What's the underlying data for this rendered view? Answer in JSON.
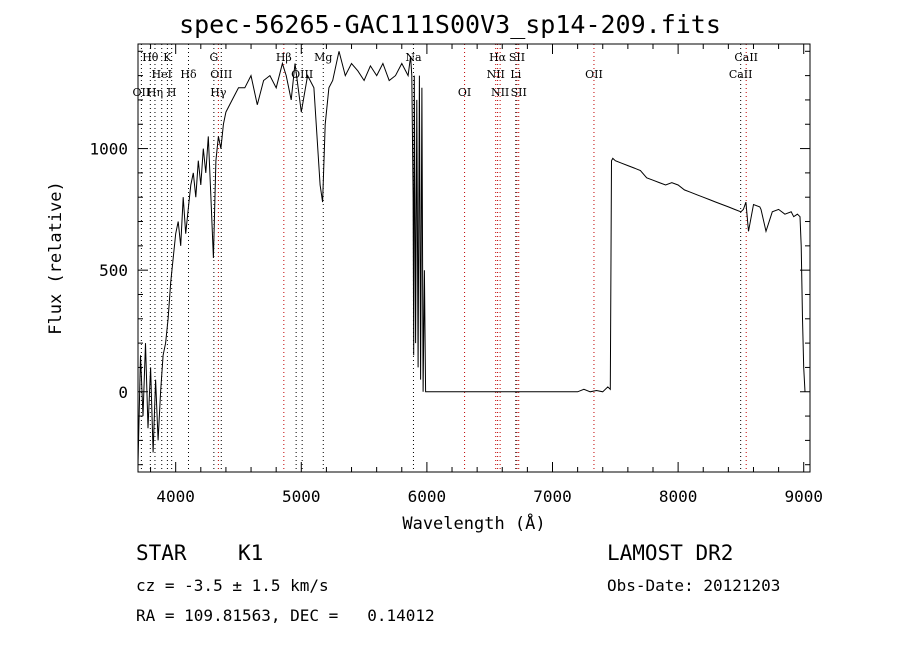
{
  "chart_data": {
    "type": "line",
    "title": "spec-56265-GAC111S00V3_sp14-209.fits",
    "xlabel": "Wavelength (Å)",
    "ylabel": "Flux (relative)",
    "xlim": [
      3700,
      9050
    ],
    "ylim": [
      -330,
      1430
    ],
    "x_ticks": [
      4000,
      5000,
      6000,
      7000,
      8000,
      9000
    ],
    "y_ticks": [
      0,
      500,
      1000
    ],
    "grid": false,
    "series": [
      {
        "x": [
          3700,
          3720,
          3740,
          3760,
          3780,
          3800,
          3820,
          3840,
          3860,
          3880,
          3900,
          3920,
          3940,
          3960,
          3980,
          4000,
          4020,
          4040,
          4060,
          4080,
          4100,
          4120,
          4140,
          4160,
          4180,
          4200,
          4220,
          4240,
          4260,
          4280,
          4300,
          4320,
          4340,
          4360,
          4380,
          4400,
          4450,
          4500,
          4550,
          4600,
          4650,
          4700,
          4750,
          4800,
          4850,
          4880,
          4920,
          4950,
          5000,
          5050,
          5100,
          5150,
          5170,
          5190,
          5220,
          5250,
          5300,
          5350,
          5400,
          5450,
          5500,
          5550,
          5600,
          5650,
          5700,
          5750,
          5800,
          5850,
          5870,
          5880,
          5890,
          5895,
          5900,
          5910,
          5920,
          5930,
          5940,
          5950,
          5960,
          5970,
          5980,
          5990,
          6000,
          6100,
          6200,
          6300,
          6400,
          6500,
          6600,
          6700,
          6800,
          6900,
          7000,
          7100,
          7200,
          7250,
          7300,
          7350,
          7400,
          7440,
          7460,
          7470,
          7480,
          7500,
          7550,
          7600,
          7650,
          7700,
          7750,
          7800,
          7850,
          7900,
          7950,
          8000,
          8050,
          8100,
          8150,
          8200,
          8250,
          8300,
          8350,
          8400,
          8450,
          8500,
          8520,
          8540,
          8560,
          8600,
          8650,
          8660,
          8700,
          8750,
          8800,
          8850,
          8900,
          8920,
          8950,
          8970,
          8980,
          8990,
          9000,
          9010
        ],
        "y": [
          -300,
          150,
          -100,
          200,
          -150,
          100,
          -250,
          50,
          -200,
          0,
          150,
          200,
          300,
          450,
          550,
          650,
          700,
          600,
          800,
          650,
          750,
          850,
          900,
          800,
          950,
          850,
          1000,
          900,
          1050,
          800,
          550,
          950,
          1050,
          1000,
          1100,
          1150,
          1200,
          1250,
          1250,
          1300,
          1180,
          1280,
          1300,
          1250,
          1350,
          1300,
          1200,
          1350,
          1150,
          1300,
          1250,
          850,
          780,
          1100,
          1250,
          1280,
          1400,
          1300,
          1350,
          1320,
          1280,
          1340,
          1300,
          1350,
          1280,
          1300,
          1350,
          1300,
          1380,
          1300,
          800,
          150,
          1300,
          200,
          1200,
          100,
          1300,
          50,
          1250,
          0,
          500,
          0,
          0,
          0,
          0,
          0,
          0,
          0,
          0,
          0,
          0,
          0,
          0,
          0,
          0,
          10,
          0,
          5,
          0,
          20,
          10,
          950,
          960,
          950,
          940,
          930,
          920,
          910,
          880,
          870,
          860,
          850,
          860,
          850,
          830,
          820,
          810,
          800,
          790,
          780,
          770,
          760,
          750,
          740,
          750,
          780,
          660,
          770,
          760,
          750,
          660,
          740,
          750,
          730,
          740,
          720,
          730,
          720,
          600,
          300,
          100,
          0
        ]
      }
    ],
    "line_labels": [
      {
        "text": "Hθ",
        "wl": 3798,
        "row": 1
      },
      {
        "text": "K",
        "wl": 3934,
        "row": 1
      },
      {
        "text": "G",
        "wl": 4304,
        "row": 1
      },
      {
        "text": "Hβ",
        "wl": 4861,
        "row": 1
      },
      {
        "text": "Mg",
        "wl": 5175,
        "row": 1
      },
      {
        "text": "Na",
        "wl": 5893,
        "row": 1
      },
      {
        "text": "Hα",
        "wl": 6563,
        "row": 1
      },
      {
        "text": "SII",
        "wl": 6717,
        "row": 1
      },
      {
        "text": "CaII",
        "wl": 8542,
        "row": 1
      },
      {
        "text": "HeI",
        "wl": 3889,
        "row": 2
      },
      {
        "text": "Hδ",
        "wl": 4102,
        "row": 2
      },
      {
        "text": "OIII",
        "wl": 4363,
        "row": 2
      },
      {
        "text": "OIII",
        "wl": 5007,
        "row": 2
      },
      {
        "text": "NII",
        "wl": 6548,
        "row": 2
      },
      {
        "text": "Li",
        "wl": 6708,
        "row": 2
      },
      {
        "text": "OII",
        "wl": 7330,
        "row": 2
      },
      {
        "text": "CaII",
        "wl": 8498,
        "row": 2
      },
      {
        "text": "OII",
        "wl": 3727,
        "row": 3
      },
      {
        "text": "Hη",
        "wl": 3835,
        "row": 3
      },
      {
        "text": "H",
        "wl": 3968,
        "row": 3
      },
      {
        "text": "Hγ",
        "wl": 4340,
        "row": 3
      },
      {
        "text": "OI",
        "wl": 6300,
        "row": 3
      },
      {
        "text": "NII",
        "wl": 6583,
        "row": 3
      },
      {
        "text": "SII",
        "wl": 6731,
        "row": 3
      }
    ],
    "marker_lines": [
      {
        "wl": 3727,
        "color": "#000000"
      },
      {
        "wl": 3798,
        "color": "#000000"
      },
      {
        "wl": 3835,
        "color": "#000000"
      },
      {
        "wl": 3889,
        "color": "#000000"
      },
      {
        "wl": 3934,
        "color": "#000000"
      },
      {
        "wl": 3968,
        "color": "#000000"
      },
      {
        "wl": 4102,
        "color": "#000000"
      },
      {
        "wl": 4304,
        "color": "#000000"
      },
      {
        "wl": 4340,
        "color": "#c00000"
      },
      {
        "wl": 4363,
        "color": "#000000"
      },
      {
        "wl": 4861,
        "color": "#c00000"
      },
      {
        "wl": 4959,
        "color": "#000000"
      },
      {
        "wl": 5007,
        "color": "#000000"
      },
      {
        "wl": 5175,
        "color": "#000000"
      },
      {
        "wl": 5893,
        "color": "#000000"
      },
      {
        "wl": 6300,
        "color": "#c00000"
      },
      {
        "wl": 6548,
        "color": "#c00000"
      },
      {
        "wl": 6563,
        "color": "#c00000"
      },
      {
        "wl": 6583,
        "color": "#c00000"
      },
      {
        "wl": 6708,
        "color": "#000000"
      },
      {
        "wl": 6717,
        "color": "#c00000"
      },
      {
        "wl": 6731,
        "color": "#c00000"
      },
      {
        "wl": 7330,
        "color": "#c00000"
      },
      {
        "wl": 8498,
        "color": "#000000"
      },
      {
        "wl": 8542,
        "color": "#c00000"
      }
    ]
  },
  "info": {
    "object_class": "STAR",
    "subclass": "K1",
    "redshift": "cz = -3.5 ± 1.5 km/s",
    "coords": "RA = 109.81563, DEC =   0.14012",
    "survey": "LAMOST DR2",
    "obs_date": "Obs-Date: 20121203"
  }
}
